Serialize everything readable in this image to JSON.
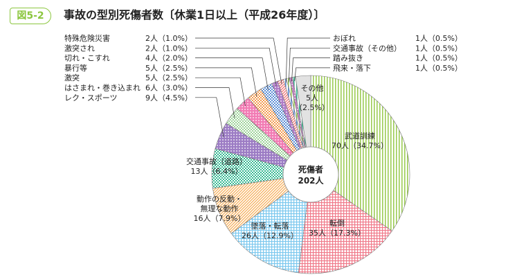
{
  "figure_label": "図5-2",
  "chart_data": {
    "type": "pie",
    "title": "事故の型別死傷者数〔休業1日以上（平成26年度）〕",
    "center_label": [
      "死傷者",
      "202人"
    ],
    "total": 202,
    "slices": [
      {
        "name": "武道訓練",
        "value": 70,
        "pct": "34.7%",
        "label": "70人（34.7%）",
        "color": "#9ccc55",
        "pattern": "vstripe"
      },
      {
        "name": "転倒",
        "value": 35,
        "pct": "17.3%",
        "label": "35人（17.3%）",
        "color": "#f07a8a",
        "pattern": "grid"
      },
      {
        "name": "墜落・転落",
        "value": 26,
        "pct": "12.9%",
        "label": "26人（12.9%）",
        "color": "#7cc8ee",
        "pattern": "grid"
      },
      {
        "name": "動作の反動・無理な動作",
        "value": 16,
        "pct": "7.9%",
        "label": "16人（7.9%）",
        "color": "#f6ac55",
        "pattern": "dstripe"
      },
      {
        "name": "交通事故（道路）",
        "value": 13,
        "pct": "6.4%",
        "label": "13人（6.4%）",
        "color": "#36b993",
        "pattern": "check"
      },
      {
        "name": "レク・スポーツ",
        "value": 9,
        "pct": "4.5%",
        "label": "9人（4.5%）",
        "color": "#9c7cc4",
        "pattern": "dots"
      },
      {
        "name": "はさまれ・巻き込まれ",
        "value": 6,
        "pct": "3.0%",
        "label": "6人（3.0%）",
        "color": "#9ed39a",
        "pattern": "check"
      },
      {
        "name": "激突",
        "value": 5,
        "pct": "2.5%",
        "label": "5人（2.5%）",
        "color": "#f27cb4",
        "pattern": "dots"
      },
      {
        "name": "暴行等",
        "value": 5,
        "pct": "2.5%",
        "label": "5人（2.5%）",
        "color": "#f39a4e",
        "pattern": "check"
      },
      {
        "name": "切れ・こすれ",
        "value": 4,
        "pct": "2.0%",
        "label": "4人（2.0%）",
        "color": "#5d8fd6",
        "pattern": "check"
      },
      {
        "name": "激突され",
        "value": 2,
        "pct": "1.0%",
        "label": "2人（1.0%）",
        "color": "#b07cc8",
        "pattern": "dots"
      },
      {
        "name": "特殊危険災害",
        "value": 2,
        "pct": "1.0%",
        "label": "2人（1.0%）",
        "color": "#f07070",
        "pattern": "dstripe"
      },
      {
        "name": "おぼれ",
        "value": 1,
        "pct": "0.5%",
        "label": "1人（0.5%）",
        "color": "#5d8fd6",
        "pattern": "vstripe"
      },
      {
        "name": "交通事故（その他）",
        "value": 1,
        "pct": "0.5%",
        "label": "1人（0.5%）",
        "color": "#9ccc55",
        "pattern": "vstripe"
      },
      {
        "name": "踏み抜き",
        "value": 1,
        "pct": "0.5%",
        "label": "1人（0.5%）",
        "color": "#c080c0",
        "pattern": "dots"
      },
      {
        "name": "飛来・落下",
        "value": 1,
        "pct": "0.5%",
        "label": "1人（0.5%）",
        "color": "#36b993",
        "pattern": "vstripe"
      },
      {
        "name": "その他",
        "value": 5,
        "pct": "2.5%",
        "label": "5人（2.5%）",
        "color": "#e2e2e2",
        "pattern": "solid"
      }
    ],
    "legend_left": [
      "特殊危険災害",
      "激突され",
      "切れ・こすれ",
      "暴行等",
      "激突",
      "はさまれ・巻き込まれ",
      "レク・スポーツ"
    ],
    "legend_right": [
      "おぼれ",
      "交通事故（その他）",
      "踏み抜き",
      "飛来・落下"
    ],
    "inside_labels": {
      "武道訓練": [
        "武道訓練",
        "70人（34.7%）"
      ],
      "転倒": [
        "転倒",
        "35人（17.3%）"
      ],
      "墜落・転落": [
        "墜落・転落",
        "26人（12.9%）"
      ],
      "動作の反動・無理な動作": [
        "動作の反動・",
        "無理な動作",
        "16人（7.9%）"
      ],
      "交通事故（道路）": [
        "交通事故（道路）",
        "13人（6.4%）"
      ],
      "その他": [
        "その他",
        "5人",
        "（2.5%）"
      ]
    }
  }
}
